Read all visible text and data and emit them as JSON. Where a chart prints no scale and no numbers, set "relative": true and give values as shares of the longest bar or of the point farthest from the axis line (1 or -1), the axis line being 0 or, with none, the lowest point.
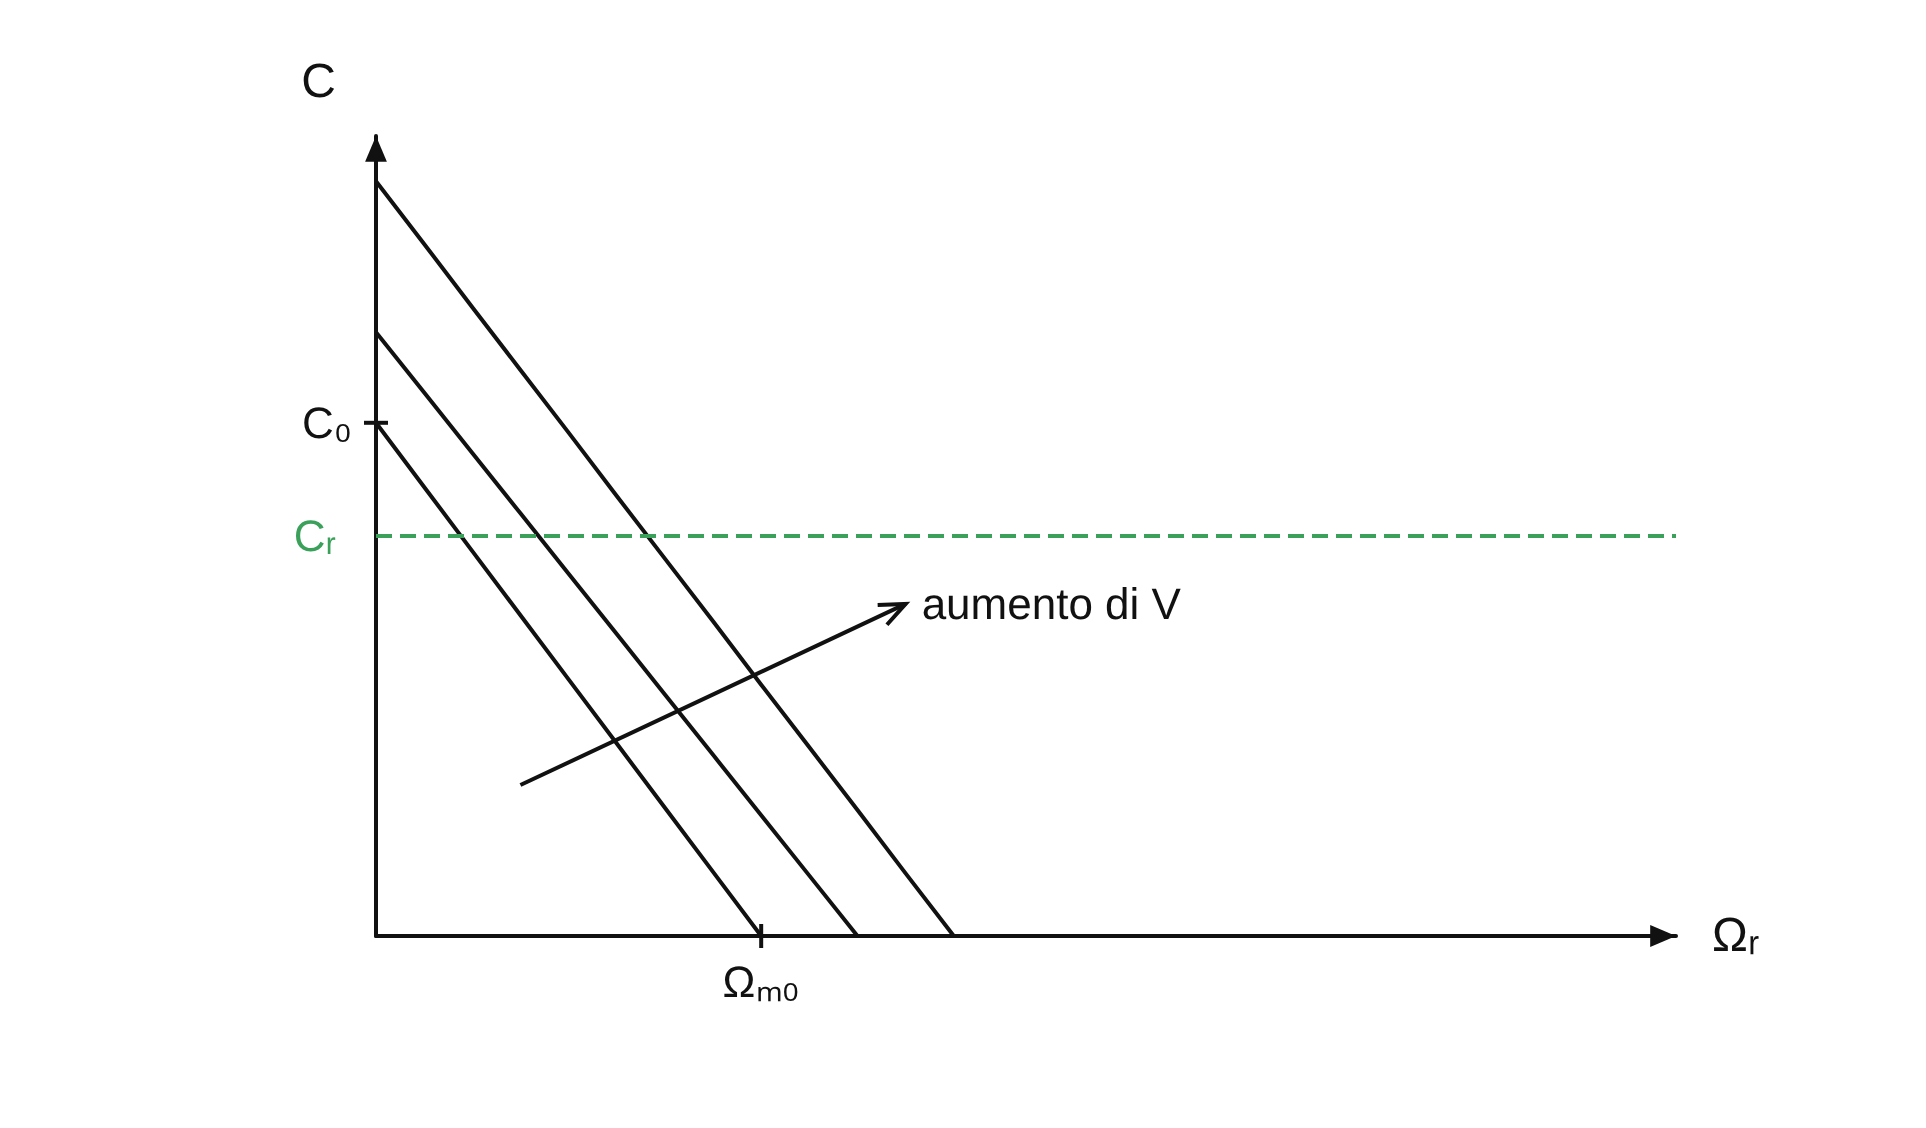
{
  "chart_data": {
    "type": "line",
    "relative": true,
    "xlabel": "Ωᵣ",
    "ylabel": "C",
    "marker": "none",
    "line_style": "solid",
    "categories": [
      null,
      null,
      null,
      null,
      null,
      null,
      null,
      null,
      null,
      null,
      null,
      null,
      null,
      null,
      null,
      null,
      null,
      null,
      null,
      null,
      null,
      null,
      null,
      null,
      null,
      null,
      null,
      null
    ],
    "series": [
      {
        "color": "#111111",
        "values": [
          0.68,
          0.595,
          0.51,
          0.425,
          0.34,
          0.255,
          0.17,
          0.085,
          0,
          null,
          null,
          null,
          null,
          null,
          null,
          null,
          null,
          null,
          null,
          null,
          null,
          null,
          null,
          null,
          null,
          null,
          null,
          null
        ]
      },
      {
        "color": "#111111",
        "values": [
          0.8,
          0.72,
          0.64,
          0.56,
          0.48,
          0.4,
          0.32,
          0.24,
          0.16,
          0.08,
          0,
          null,
          null,
          null,
          null,
          null,
          null,
          null,
          null,
          null,
          null,
          null,
          null,
          null,
          null,
          null,
          null,
          null
        ]
      },
      {
        "color": "#111111",
        "values": [
          1,
          0.917,
          0.833,
          0.75,
          0.667,
          0.583,
          0.5,
          0.417,
          0.333,
          0.25,
          0.167,
          0.083,
          0,
          null,
          null,
          null,
          null,
          null,
          null,
          null,
          null,
          null,
          null,
          null,
          null,
          null,
          null,
          null
        ]
      }
    ],
    "ref_lines": [
      {
        "axis": "y",
        "value": 0.53,
        "label": "Cᵣ",
        "color": "#3aa05a",
        "line_style": "dashed"
      }
    ],
    "annotations": [
      "C₀",
      {
        "text": "Ωₘ₀",
        "y": 0
      },
      "aumento di V"
    ]
  }
}
